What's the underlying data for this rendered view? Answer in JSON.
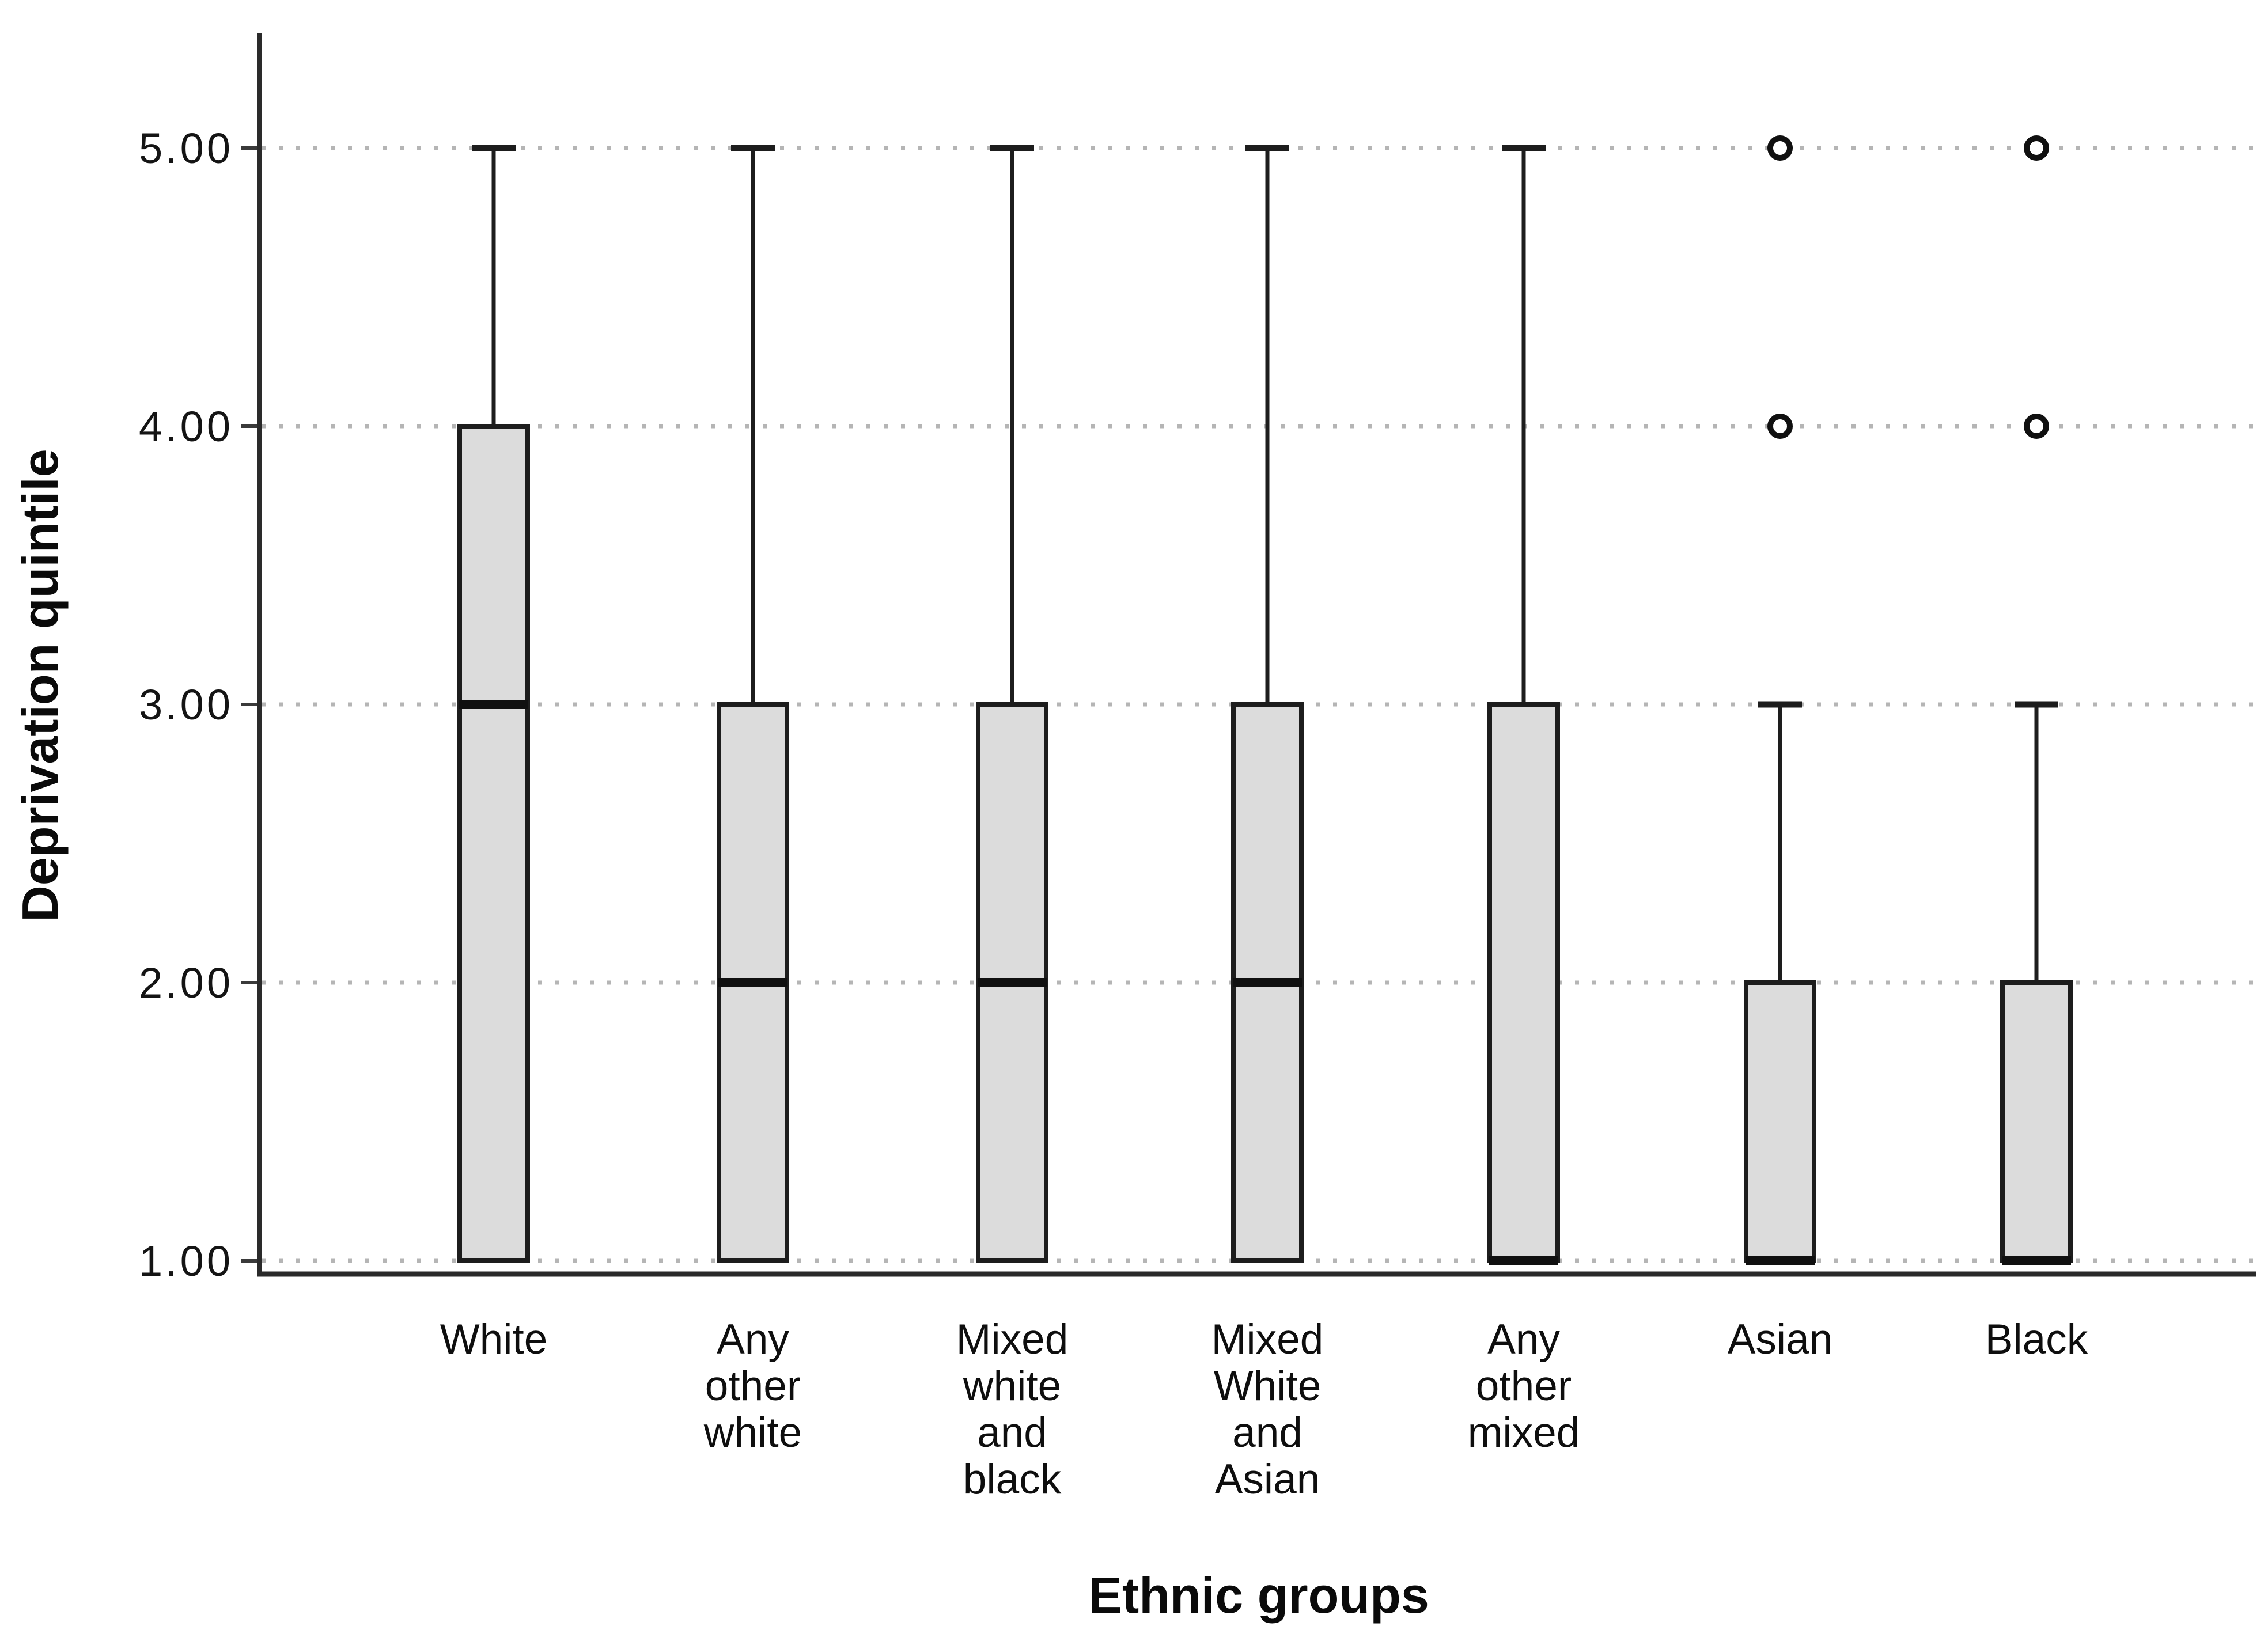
{
  "figure": {
    "background": "#ffffff"
  },
  "chart_data": {
    "type": "boxplot",
    "title": "",
    "xlabel": "Ethnic groups",
    "ylabel": "Deprivation quintile",
    "ylim": [
      1,
      5
    ],
    "yticks": [
      {
        "value": 5,
        "label": "5.00"
      },
      {
        "value": 4,
        "label": "4.00"
      },
      {
        "value": 3,
        "label": "3.00"
      },
      {
        "value": 2,
        "label": "2.00"
      },
      {
        "value": 1,
        "label": "1.00"
      }
    ],
    "grid": {
      "horizontal": true,
      "style": "dotted",
      "vertical": false
    },
    "legend": "none",
    "categories": [
      "White",
      "Any other white",
      "Mixed white and black",
      "Mixed White and Asian",
      "Any other mixed",
      "Asian",
      "Black"
    ],
    "category_label_lines": [
      [
        "White"
      ],
      [
        "Any",
        "other",
        "white"
      ],
      [
        "Mixed",
        "white",
        "and",
        "black"
      ],
      [
        "Mixed",
        "White",
        "and",
        "Asian"
      ],
      [
        "Any",
        "other",
        "mixed"
      ],
      [
        "Asian"
      ],
      [
        "Black"
      ]
    ],
    "series": [
      {
        "category": "White",
        "q1": 1,
        "median": 3,
        "q3": 4,
        "whisker_low": 1,
        "whisker_high": 5,
        "outliers": []
      },
      {
        "category": "Any other white",
        "q1": 1,
        "median": 2,
        "q3": 3,
        "whisker_low": 1,
        "whisker_high": 5,
        "outliers": []
      },
      {
        "category": "Mixed white and black",
        "q1": 1,
        "median": 2,
        "q3": 3,
        "whisker_low": 1,
        "whisker_high": 5,
        "outliers": []
      },
      {
        "category": "Mixed White and Asian",
        "q1": 1,
        "median": 2,
        "q3": 3,
        "whisker_low": 1,
        "whisker_high": 5,
        "outliers": []
      },
      {
        "category": "Any other mixed",
        "q1": 1,
        "median": 1,
        "q3": 3,
        "whisker_low": 1,
        "whisker_high": 5,
        "outliers": []
      },
      {
        "category": "Asian",
        "q1": 1,
        "median": 1,
        "q3": 2,
        "whisker_low": 1,
        "whisker_high": 3,
        "outliers": [
          4,
          5
        ]
      },
      {
        "category": "Black",
        "q1": 1,
        "median": 1,
        "q3": 2,
        "whisker_low": 1,
        "whisker_high": 3,
        "outliers": [
          4,
          5
        ]
      }
    ],
    "colors": {
      "box_fill": "#dcdcdc",
      "box_border": "#1d1d1d",
      "median": "#101010",
      "whisker": "#1d1d1d",
      "outlier_stroke": "#101010",
      "grid": "#b5b5b5",
      "axis": "#2a2a2a",
      "tick_mark": "#3a3a3a",
      "text": "#111111"
    }
  }
}
